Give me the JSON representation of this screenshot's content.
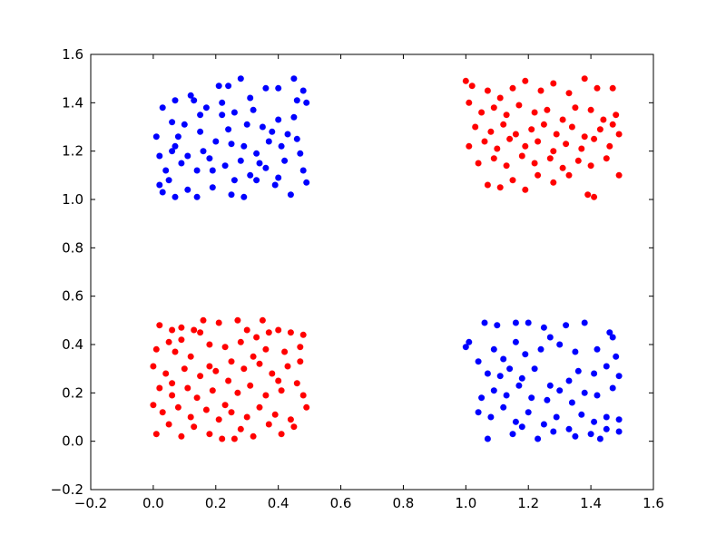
{
  "chart_data": {
    "type": "scatter",
    "xlim": [
      -0.2,
      1.6
    ],
    "ylim": [
      -0.2,
      1.6
    ],
    "xticks": [
      -0.2,
      0.0,
      0.2,
      0.4,
      0.6,
      0.8,
      1.0,
      1.2,
      1.4,
      1.6
    ],
    "yticks": [
      -0.2,
      0.0,
      0.2,
      0.4,
      0.6,
      0.8,
      1.0,
      1.2,
      1.4,
      1.6
    ],
    "xtick_labels": [
      "−0.2",
      "0.0",
      "0.2",
      "0.4",
      "0.6",
      "0.8",
      "1.0",
      "1.2",
      "1.4",
      "1.6"
    ],
    "ytick_labels": [
      "−0.2",
      "0.0",
      "0.2",
      "0.4",
      "0.6",
      "0.8",
      "1.0",
      "1.2",
      "1.4",
      "1.6"
    ],
    "grid": false,
    "legend": false,
    "series": [
      {
        "color": "#0000ff",
        "points": [
          [
            0.02,
            1.06
          ],
          [
            0.03,
            1.38
          ],
          [
            0.07,
            1.41
          ],
          [
            0.13,
            1.41
          ],
          [
            0.21,
            1.47
          ],
          [
            0.24,
            1.47
          ],
          [
            0.28,
            1.5
          ],
          [
            0.36,
            1.46
          ],
          [
            0.4,
            1.46
          ],
          [
            0.45,
            1.5
          ],
          [
            0.48,
            1.45
          ],
          [
            0.49,
            1.4
          ],
          [
            0.01,
            1.26
          ],
          [
            0.06,
            1.32
          ],
          [
            0.1,
            1.31
          ],
          [
            0.15,
            1.28
          ],
          [
            0.22,
            1.35
          ],
          [
            0.26,
            1.36
          ],
          [
            0.32,
            1.37
          ],
          [
            0.35,
            1.3
          ],
          [
            0.4,
            1.33
          ],
          [
            0.45,
            1.34
          ],
          [
            0.02,
            1.18
          ],
          [
            0.07,
            1.22
          ],
          [
            0.11,
            1.18
          ],
          [
            0.16,
            1.2
          ],
          [
            0.2,
            1.24
          ],
          [
            0.25,
            1.23
          ],
          [
            0.29,
            1.22
          ],
          [
            0.33,
            1.19
          ],
          [
            0.37,
            1.24
          ],
          [
            0.41,
            1.22
          ],
          [
            0.46,
            1.25
          ],
          [
            0.04,
            1.12
          ],
          [
            0.09,
            1.15
          ],
          [
            0.14,
            1.12
          ],
          [
            0.19,
            1.12
          ],
          [
            0.23,
            1.14
          ],
          [
            0.28,
            1.16
          ],
          [
            0.31,
            1.1
          ],
          [
            0.36,
            1.13
          ],
          [
            0.42,
            1.16
          ],
          [
            0.48,
            1.12
          ],
          [
            0.03,
            1.03
          ],
          [
            0.07,
            1.01
          ],
          [
            0.11,
            1.04
          ],
          [
            0.14,
            1.01
          ],
          [
            0.19,
            1.05
          ],
          [
            0.25,
            1.02
          ],
          [
            0.29,
            1.01
          ],
          [
            0.33,
            1.08
          ],
          [
            0.39,
            1.06
          ],
          [
            0.44,
            1.02
          ],
          [
            0.49,
            1.07
          ],
          [
            0.12,
            1.43
          ],
          [
            0.17,
            1.38
          ],
          [
            0.31,
            1.42
          ],
          [
            0.46,
            1.41
          ],
          [
            0.08,
            1.26
          ],
          [
            0.24,
            1.29
          ],
          [
            0.38,
            1.28
          ],
          [
            0.43,
            1.27
          ],
          [
            0.05,
            1.08
          ],
          [
            0.26,
            1.08
          ],
          [
            0.47,
            1.19
          ],
          [
            0.34,
            1.15
          ],
          [
            0.18,
            1.17
          ],
          [
            0.06,
            1.2
          ],
          [
            0.4,
            1.09
          ],
          [
            0.22,
            1.4
          ],
          [
            0.3,
            1.31
          ],
          [
            0.15,
            1.35
          ],
          [
            1.0,
            0.39
          ],
          [
            1.01,
            0.41
          ],
          [
            1.06,
            0.49
          ],
          [
            1.1,
            0.48
          ],
          [
            1.16,
            0.49
          ],
          [
            1.2,
            0.49
          ],
          [
            1.25,
            0.47
          ],
          [
            1.27,
            0.43
          ],
          [
            1.32,
            0.48
          ],
          [
            1.38,
            0.49
          ],
          [
            1.46,
            0.45
          ],
          [
            1.47,
            0.43
          ],
          [
            1.04,
            0.33
          ],
          [
            1.09,
            0.38
          ],
          [
            1.12,
            0.34
          ],
          [
            1.16,
            0.41
          ],
          [
            1.19,
            0.36
          ],
          [
            1.24,
            0.38
          ],
          [
            1.3,
            0.4
          ],
          [
            1.35,
            0.37
          ],
          [
            1.42,
            0.38
          ],
          [
            1.48,
            0.35
          ],
          [
            1.07,
            0.28
          ],
          [
            1.11,
            0.27
          ],
          [
            1.14,
            0.3
          ],
          [
            1.18,
            0.26
          ],
          [
            1.22,
            0.3
          ],
          [
            1.27,
            0.23
          ],
          [
            1.33,
            0.25
          ],
          [
            1.36,
            0.29
          ],
          [
            1.41,
            0.28
          ],
          [
            1.45,
            0.31
          ],
          [
            1.49,
            0.27
          ],
          [
            1.05,
            0.18
          ],
          [
            1.09,
            0.21
          ],
          [
            1.13,
            0.19
          ],
          [
            1.17,
            0.23
          ],
          [
            1.21,
            0.18
          ],
          [
            1.26,
            0.17
          ],
          [
            1.3,
            0.21
          ],
          [
            1.34,
            0.16
          ],
          [
            1.38,
            0.2
          ],
          [
            1.42,
            0.19
          ],
          [
            1.47,
            0.22
          ],
          [
            1.04,
            0.12
          ],
          [
            1.08,
            0.1
          ],
          [
            1.12,
            0.14
          ],
          [
            1.16,
            0.08
          ],
          [
            1.2,
            0.12
          ],
          [
            1.25,
            0.07
          ],
          [
            1.29,
            0.1
          ],
          [
            1.33,
            0.05
          ],
          [
            1.37,
            0.11
          ],
          [
            1.41,
            0.08
          ],
          [
            1.45,
            0.1
          ],
          [
            1.49,
            0.09
          ],
          [
            1.07,
            0.01
          ],
          [
            1.15,
            0.03
          ],
          [
            1.18,
            0.06
          ],
          [
            1.23,
            0.01
          ],
          [
            1.28,
            0.04
          ],
          [
            1.35,
            0.02
          ],
          [
            1.4,
            0.03
          ],
          [
            1.43,
            0.01
          ],
          [
            1.45,
            0.05
          ],
          [
            1.49,
            0.04
          ]
        ]
      },
      {
        "color": "#ff0000",
        "points": [
          [
            0.02,
            0.48
          ],
          [
            0.06,
            0.46
          ],
          [
            0.09,
            0.47
          ],
          [
            0.13,
            0.46
          ],
          [
            0.16,
            0.5
          ],
          [
            0.21,
            0.49
          ],
          [
            0.27,
            0.5
          ],
          [
            0.3,
            0.46
          ],
          [
            0.35,
            0.5
          ],
          [
            0.4,
            0.46
          ],
          [
            0.44,
            0.45
          ],
          [
            0.48,
            0.44
          ],
          [
            0.01,
            0.38
          ],
          [
            0.05,
            0.41
          ],
          [
            0.09,
            0.42
          ],
          [
            0.12,
            0.35
          ],
          [
            0.18,
            0.4
          ],
          [
            0.23,
            0.39
          ],
          [
            0.28,
            0.41
          ],
          [
            0.33,
            0.43
          ],
          [
            0.36,
            0.38
          ],
          [
            0.42,
            0.37
          ],
          [
            0.47,
            0.39
          ],
          [
            0.0,
            0.31
          ],
          [
            0.04,
            0.28
          ],
          [
            0.1,
            0.3
          ],
          [
            0.15,
            0.27
          ],
          [
            0.2,
            0.29
          ],
          [
            0.25,
            0.33
          ],
          [
            0.29,
            0.3
          ],
          [
            0.34,
            0.32
          ],
          [
            0.38,
            0.28
          ],
          [
            0.43,
            0.31
          ],
          [
            0.47,
            0.33
          ],
          [
            0.02,
            0.22
          ],
          [
            0.06,
            0.19
          ],
          [
            0.11,
            0.22
          ],
          [
            0.14,
            0.18
          ],
          [
            0.19,
            0.21
          ],
          [
            0.24,
            0.25
          ],
          [
            0.27,
            0.2
          ],
          [
            0.31,
            0.23
          ],
          [
            0.36,
            0.19
          ],
          [
            0.41,
            0.21
          ],
          [
            0.46,
            0.24
          ],
          [
            0.48,
            0.19
          ],
          [
            0.0,
            0.15
          ],
          [
            0.03,
            0.12
          ],
          [
            0.08,
            0.14
          ],
          [
            0.12,
            0.1
          ],
          [
            0.17,
            0.13
          ],
          [
            0.21,
            0.09
          ],
          [
            0.25,
            0.12
          ],
          [
            0.3,
            0.1
          ],
          [
            0.34,
            0.14
          ],
          [
            0.39,
            0.11
          ],
          [
            0.44,
            0.09
          ],
          [
            0.49,
            0.14
          ],
          [
            0.01,
            0.03
          ],
          [
            0.05,
            0.07
          ],
          [
            0.09,
            0.02
          ],
          [
            0.13,
            0.06
          ],
          [
            0.18,
            0.03
          ],
          [
            0.22,
            0.01
          ],
          [
            0.28,
            0.05
          ],
          [
            0.32,
            0.02
          ],
          [
            0.37,
            0.07
          ],
          [
            0.41,
            0.03
          ],
          [
            0.45,
            0.06
          ],
          [
            0.26,
            0.01
          ],
          [
            0.07,
            0.37
          ],
          [
            0.15,
            0.45
          ],
          [
            0.32,
            0.35
          ],
          [
            0.4,
            0.25
          ],
          [
            0.18,
            0.31
          ],
          [
            0.23,
            0.15
          ],
          [
            0.06,
            0.24
          ],
          [
            0.37,
            0.45
          ],
          [
            1.0,
            1.49
          ],
          [
            1.02,
            1.47
          ],
          [
            1.07,
            1.45
          ],
          [
            1.11,
            1.42
          ],
          [
            1.15,
            1.46
          ],
          [
            1.19,
            1.49
          ],
          [
            1.24,
            1.45
          ],
          [
            1.28,
            1.48
          ],
          [
            1.33,
            1.44
          ],
          [
            1.38,
            1.5
          ],
          [
            1.42,
            1.46
          ],
          [
            1.47,
            1.46
          ],
          [
            1.01,
            1.4
          ],
          [
            1.05,
            1.36
          ],
          [
            1.09,
            1.38
          ],
          [
            1.13,
            1.35
          ],
          [
            1.17,
            1.39
          ],
          [
            1.22,
            1.36
          ],
          [
            1.26,
            1.37
          ],
          [
            1.31,
            1.33
          ],
          [
            1.35,
            1.38
          ],
          [
            1.4,
            1.37
          ],
          [
            1.44,
            1.33
          ],
          [
            1.48,
            1.35
          ],
          [
            1.03,
            1.3
          ],
          [
            1.08,
            1.28
          ],
          [
            1.12,
            1.31
          ],
          [
            1.16,
            1.27
          ],
          [
            1.21,
            1.29
          ],
          [
            1.25,
            1.31
          ],
          [
            1.29,
            1.27
          ],
          [
            1.34,
            1.3
          ],
          [
            1.38,
            1.26
          ],
          [
            1.43,
            1.29
          ],
          [
            1.47,
            1.31
          ],
          [
            1.01,
            1.22
          ],
          [
            1.06,
            1.24
          ],
          [
            1.1,
            1.21
          ],
          [
            1.14,
            1.25
          ],
          [
            1.19,
            1.22
          ],
          [
            1.23,
            1.24
          ],
          [
            1.28,
            1.2
          ],
          [
            1.32,
            1.23
          ],
          [
            1.37,
            1.21
          ],
          [
            1.41,
            1.25
          ],
          [
            1.46,
            1.22
          ],
          [
            1.49,
            1.27
          ],
          [
            1.04,
            1.15
          ],
          [
            1.09,
            1.17
          ],
          [
            1.13,
            1.14
          ],
          [
            1.18,
            1.18
          ],
          [
            1.22,
            1.15
          ],
          [
            1.27,
            1.17
          ],
          [
            1.31,
            1.13
          ],
          [
            1.36,
            1.16
          ],
          [
            1.4,
            1.14
          ],
          [
            1.45,
            1.17
          ],
          [
            1.07,
            1.06
          ],
          [
            1.11,
            1.05
          ],
          [
            1.15,
            1.08
          ],
          [
            1.19,
            1.04
          ],
          [
            1.23,
            1.1
          ],
          [
            1.28,
            1.07
          ],
          [
            1.33,
            1.1
          ],
          [
            1.39,
            1.02
          ],
          [
            1.41,
            1.01
          ],
          [
            1.49,
            1.1
          ]
        ]
      }
    ]
  }
}
